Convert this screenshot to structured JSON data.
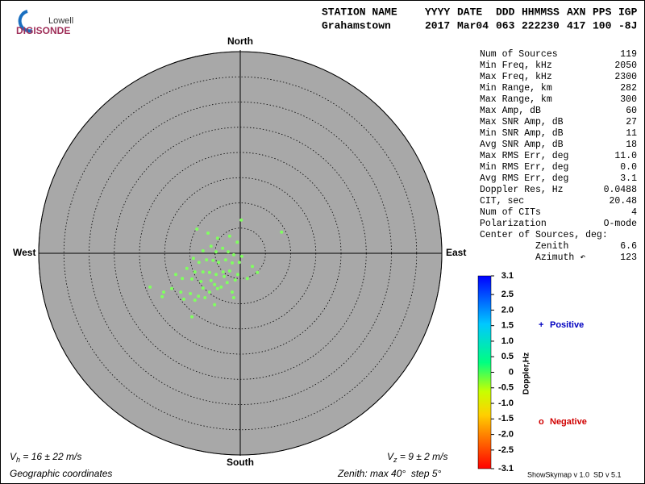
{
  "logo": {
    "top": "Lowell",
    "bottom": "DIGISONDE"
  },
  "header": {
    "labels": [
      "STATION NAME",
      "YYYY",
      "DATE",
      "DDD",
      "HHMMSS",
      "AXN",
      "PPS",
      "IGP"
    ],
    "values": [
      "Grahamstown",
      "2017",
      "Mar04",
      "063",
      "222230",
      "417",
      "100",
      "-8J"
    ]
  },
  "stats": [
    [
      "Num of Sources",
      "119"
    ],
    [
      "Min Freq, kHz",
      "2050"
    ],
    [
      "Max Freq, kHz",
      "2300"
    ],
    [
      "Min Range, km",
      "282"
    ],
    [
      "Max Range, km",
      "300"
    ],
    [
      "Max Amp, dB",
      "60"
    ],
    [
      "Max SNR Amp, dB",
      "27"
    ],
    [
      "Min SNR Amp, dB",
      "11"
    ],
    [
      "Avg SNR Amp, dB",
      "18"
    ],
    [
      "Max RMS Err, deg",
      "11.0"
    ],
    [
      "Min RMS Err, deg",
      "0.0"
    ],
    [
      "Avg RMS Err, deg",
      "3.1"
    ],
    [
      "Doppler Res, Hz",
      "0.0488"
    ],
    [
      "CIT, sec",
      "20.48"
    ],
    [
      "Num of CITs",
      "4"
    ],
    [
      "Polarization",
      "O-mode"
    ]
  ],
  "center": {
    "title": "Center of Sources, deg:",
    "rows": [
      [
        "Zenith",
        "6.6"
      ],
      [
        "Azimuth ↶",
        "123"
      ]
    ]
  },
  "footer": {
    "vh": {
      "symbol": "V",
      "sub": "h",
      "text": " = 16 ± 22 m/s"
    },
    "vz": {
      "symbol": "V",
      "sub": "z",
      "text": " = 9 ± 2 m/s"
    },
    "coords": "Geographic coordinates",
    "zenith": "Zenith: max 40°  step 5°",
    "version": "ShowSkymap v 1.0  SD v 5.1"
  },
  "chart_data": {
    "type": "scatter",
    "directions": {
      "north": "North",
      "south": "South",
      "west": "West",
      "east": "East"
    },
    "xlim": [
      -40,
      40
    ],
    "ylim": [
      -40,
      40
    ],
    "rticks": [
      5,
      10,
      15,
      20,
      25,
      30,
      35,
      40
    ],
    "series": [
      {
        "color": "#80ff60",
        "x": [
          0.2,
          8.2,
          -8.6,
          -6.4,
          -2.1,
          -4.5,
          -0.6,
          -5.8,
          -3.5,
          -7.4,
          -4.8,
          -2.4,
          -1.3,
          0.3,
          2.4,
          -9.3,
          -8.2,
          -6.7,
          -5.4,
          -4.3,
          -2.9,
          -1.6,
          -0.2,
          -10.6,
          -9.0,
          -7.4,
          -6.1,
          -4.8,
          -3.4,
          -2.1,
          -12.8,
          -11.5,
          -9.6,
          -7.8,
          -5.1,
          -3.8,
          -2.6,
          -1.0,
          -17.9,
          -15.2,
          -13.6,
          -11.8,
          -9.9,
          -8.3,
          -6.1,
          -4.5,
          -1.6,
          -15.5,
          -11.2,
          -9.0,
          -7.0,
          -1.3,
          -5.1,
          -9.6,
          1.4,
          3.4,
          -7.4,
          -5.8,
          -3.2,
          -0.5
        ],
        "values": [
          6.6,
          4.2,
          4.8,
          4.0,
          3.4,
          3.0,
          2.2,
          1.4,
          1.0,
          0.5,
          0.3,
          0.3,
          -0.3,
          -0.6,
          -2.6,
          -1.0,
          -1.8,
          -1.3,
          -1.4,
          -1.8,
          -1.3,
          -1.9,
          -1.8,
          -3.0,
          -3.7,
          -3.7,
          -3.8,
          -4.2,
          -3.7,
          -3.5,
          -4.2,
          -5.0,
          -5.1,
          -5.6,
          -6.2,
          -6.7,
          -5.8,
          -5.3,
          -6.7,
          -7.7,
          -7.0,
          -7.7,
          -8.0,
          -8.5,
          -7.7,
          -7.0,
          -7.7,
          -8.6,
          -9.1,
          -9.3,
          -8.8,
          -8.8,
          -10.2,
          -12.6,
          -5.0,
          -3.8,
          -6.9,
          -5.4,
          -4.6,
          -4.2
        ]
      }
    ],
    "colorbar": {
      "label": "Doppler,Hz",
      "lim": [
        -3.1,
        3.1
      ],
      "ticks": [
        3.1,
        2.5,
        {
          "value": 2,
          "label": "2.0"
        },
        1.5,
        {
          "value": 1,
          "label": "1.0"
        },
        0.5,
        0,
        -0.5,
        {
          "value": -1,
          "label": "-1.0"
        },
        -1.5,
        {
          "value": -2,
          "label": "-2.0"
        },
        -2.5,
        -3.1
      ]
    },
    "legend": {
      "positive": "Positive",
      "negative": "Negative"
    }
  }
}
